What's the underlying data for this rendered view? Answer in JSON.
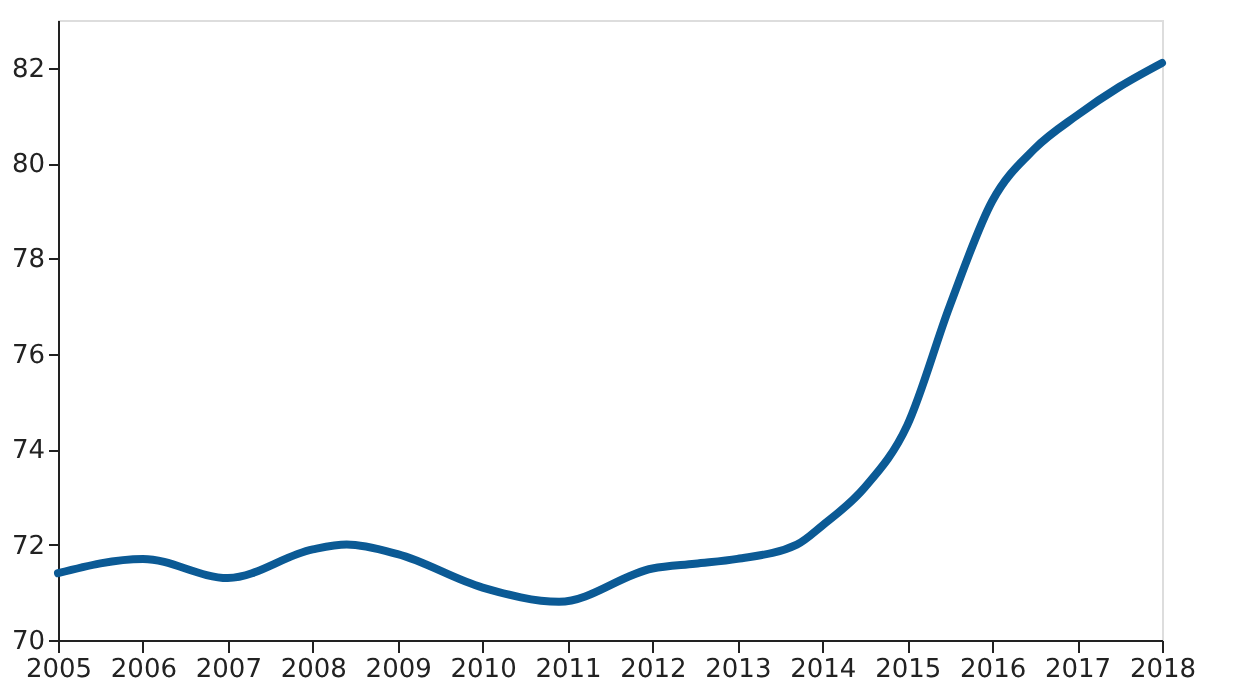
{
  "chart_data": {
    "type": "line",
    "x": [
      2005,
      2006,
      2007,
      2008,
      2008.4,
      2009,
      2010,
      2010.9,
      2012,
      2012.5,
      2013,
      2013.7,
      2014,
      2014.5,
      2015,
      2015.5,
      2016,
      2016.5,
      2017,
      2017.5,
      2018
    ],
    "series": [
      {
        "color": "#0b5a95",
        "values": [
          71.4,
          71.7,
          71.3,
          71.9,
          72.0,
          71.8,
          71.1,
          70.8,
          71.5,
          71.6,
          71.7,
          72.0,
          72.4,
          73.2,
          74.5,
          77.0,
          79.2,
          80.3,
          81.0,
          81.6,
          82.1
        ]
      }
    ],
    "xlim": [
      2005,
      2018
    ],
    "xticks": [
      2005,
      2006,
      2007,
      2008,
      2009,
      2010,
      2011,
      2012,
      2013,
      2014,
      2015,
      2016,
      2017,
      2018
    ],
    "ylim": [
      70,
      83
    ],
    "yticks": [
      70,
      72,
      74,
      76,
      78,
      80,
      82
    ],
    "grid": false,
    "marker": "none",
    "line_style": "solid"
  }
}
